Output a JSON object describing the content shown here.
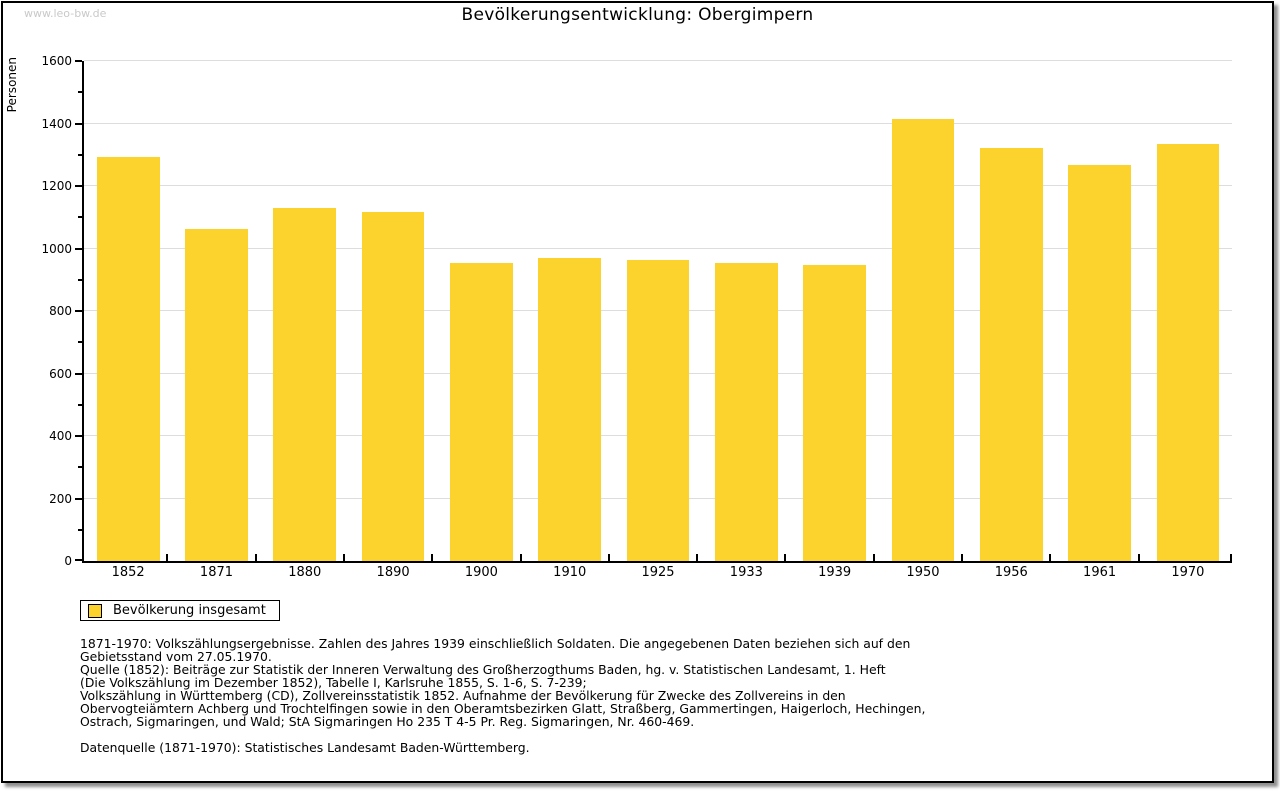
{
  "watermark": "www.leo-bw.de",
  "title": "Bevölkerungsentwicklung: Obergimpern",
  "chart_data": {
    "type": "bar",
    "title": "Bevölkerungsentwicklung: Obergimpern",
    "xlabel": "",
    "ylabel": "Personen",
    "ylim": [
      0,
      1600
    ],
    "ytick_step": 200,
    "ytick_minor_step": 100,
    "grid": true,
    "gridline_color": "#dddddd",
    "bar_color": "#fcd32d",
    "categories": [
      "1852",
      "1871",
      "1880",
      "1890",
      "1900",
      "1910",
      "1925",
      "1933",
      "1939",
      "1950",
      "1956",
      "1961",
      "1970"
    ],
    "series": [
      {
        "name": "Bevölkerung insgesamt",
        "values": [
          1293,
          1061,
          1128,
          1117,
          954,
          970,
          963,
          954,
          948,
          1415,
          1322,
          1268,
          1333
        ]
      }
    ],
    "legend": {
      "position": "bottom-left",
      "entries": [
        "Bevölkerung insgesamt"
      ]
    }
  },
  "footnotes": "1871-1970: Volkszählungsergebnisse. Zahlen des Jahres 1939 einschließlich Soldaten. Die angegebenen Daten beziehen sich auf den\nGebietsstand vom 27.05.1970.\nQuelle (1852): Beiträge zur Statistik der Inneren Verwaltung des Großherzogthums Baden, hg. v. Statistischen Landesamt, 1. Heft\n(Die Volkszählung im Dezember 1852), Tabelle I, Karlsruhe 1855, S. 1-6, S. 7-239;\nVolkszählung in Württemberg (CD), Zollvereinsstatistik 1852. Aufnahme der Bevölkerung für Zwecke des Zollvereins in den\nObervogteiämtern Achberg und Trochtelfingen sowie in den Oberamtsbezirken Glatt, Straßberg, Gammertingen, Haigerloch, Hechingen,\nOstrach, Sigmaringen, und Wald; StA Sigmaringen Ho 235 T 4-5 Pr. Reg. Sigmaringen, Nr. 460-469.",
  "datasource": "Datenquelle (1871-1970): Statistisches Landesamt Baden-Württemberg."
}
